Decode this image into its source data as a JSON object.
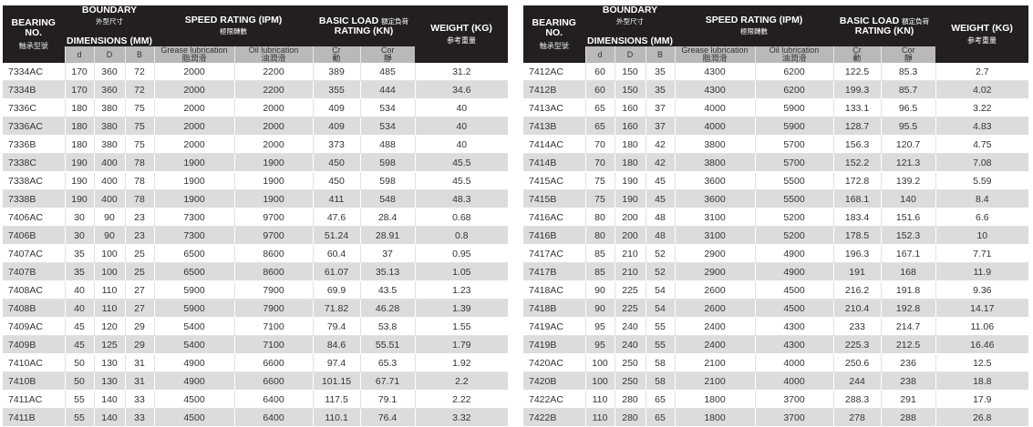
{
  "header": {
    "bearing_no": "BEARING NO.",
    "bearing_no_zh": "軸承型號",
    "boundary": "BOUNDARY",
    "boundary_zh": "外型尺寸",
    "dimensions": "DIMENSIONS (MM)",
    "speed_rating": "SPEED RATING (IPM)",
    "speed_rating_zh": "極限轉數",
    "basic_load": "BASIC LOAD",
    "basic_load_zh": "額定負荷",
    "load_rating": "RATING (KN)",
    "weight": "WEIGHT (KG)",
    "weight_zh": "参考重量",
    "col_d": "d",
    "col_D": "D",
    "col_B": "B",
    "grease": "Grease lubrication",
    "grease_zh": "脂潤滑",
    "oil": "Oil lubrication",
    "oil_zh": "油潤滑",
    "cr": "Cr",
    "cr_zh": "動",
    "cor": "Cor",
    "cor_zh": "靜"
  },
  "left_rows": [
    [
      "7334AC",
      "170",
      "360",
      "72",
      "2000",
      "2200",
      "389",
      "485",
      "31.2"
    ],
    [
      "7334B",
      "170",
      "360",
      "72",
      "2000",
      "2200",
      "355",
      "444",
      "34.6"
    ],
    [
      "7336C",
      "180",
      "380",
      "75",
      "2000",
      "2000",
      "409",
      "534",
      "40"
    ],
    [
      "7336AC",
      "180",
      "380",
      "75",
      "2000",
      "2000",
      "409",
      "534",
      "40"
    ],
    [
      "7336B",
      "180",
      "380",
      "75",
      "2000",
      "2000",
      "373",
      "488",
      "40"
    ],
    [
      "7338C",
      "190",
      "400",
      "78",
      "1900",
      "1900",
      "450",
      "598",
      "45.5"
    ],
    [
      "7338AC",
      "190",
      "400",
      "78",
      "1900",
      "1900",
      "450",
      "598",
      "45.5"
    ],
    [
      "7338B",
      "190",
      "400",
      "78",
      "1900",
      "1900",
      "411",
      "548",
      "48.3"
    ],
    [
      "7406AC",
      "30",
      "90",
      "23",
      "7300",
      "9700",
      "47.6",
      "28.4",
      "0.68"
    ],
    [
      "7406B",
      "30",
      "90",
      "23",
      "7300",
      "9700",
      "51.24",
      "28.91",
      "0.8"
    ],
    [
      "7407AC",
      "35",
      "100",
      "25",
      "6500",
      "8600",
      "60.4",
      "37",
      "0.95"
    ],
    [
      "7407B",
      "35",
      "100",
      "25",
      "6500",
      "8600",
      "61.07",
      "35.13",
      "1.05"
    ],
    [
      "7408AC",
      "40",
      "110",
      "27",
      "5900",
      "7900",
      "69.9",
      "43.5",
      "1.23"
    ],
    [
      "7408B",
      "40",
      "110",
      "27",
      "5900",
      "7900",
      "71.82",
      "46.28",
      "1.39"
    ],
    [
      "7409AC",
      "45",
      "120",
      "29",
      "5400",
      "7100",
      "79.4",
      "53.8",
      "1.55"
    ],
    [
      "7409B",
      "45",
      "125",
      "29",
      "5400",
      "7100",
      "84.6",
      "55.51",
      "1.79"
    ],
    [
      "7410AC",
      "50",
      "130",
      "31",
      "4900",
      "6600",
      "97.4",
      "65.3",
      "1.92"
    ],
    [
      "7410B",
      "50",
      "130",
      "31",
      "4900",
      "6600",
      "101.15",
      "67.71",
      "2.2"
    ],
    [
      "7411AC",
      "55",
      "140",
      "33",
      "4500",
      "6400",
      "117.5",
      "79.1",
      "2.22"
    ],
    [
      "7411B",
      "55",
      "140",
      "33",
      "4500",
      "6400",
      "110.1",
      "76.4",
      "3.32"
    ]
  ],
  "right_rows": [
    [
      "7412AC",
      "60",
      "150",
      "35",
      "4300",
      "6200",
      "122.5",
      "85.3",
      "2.7"
    ],
    [
      "7412B",
      "60",
      "150",
      "35",
      "4300",
      "6200",
      "199.3",
      "85.7",
      "4.02"
    ],
    [
      "7413AC",
      "65",
      "160",
      "37",
      "4000",
      "5900",
      "133.1",
      "96.5",
      "3.22"
    ],
    [
      "7413B",
      "65",
      "160",
      "37",
      "4000",
      "5900",
      "128.7",
      "95.5",
      "4.83"
    ],
    [
      "7414AC",
      "70",
      "180",
      "42",
      "3800",
      "5700",
      "156.3",
      "120.7",
      "4.75"
    ],
    [
      "7414B",
      "70",
      "180",
      "42",
      "3800",
      "5700",
      "152.2",
      "121.3",
      "7.08"
    ],
    [
      "7415AC",
      "75",
      "190",
      "45",
      "3600",
      "5500",
      "172.8",
      "139.2",
      "5.59"
    ],
    [
      "7415B",
      "75",
      "190",
      "45",
      "3600",
      "5500",
      "168.1",
      "140",
      "8.4"
    ],
    [
      "7416AC",
      "80",
      "200",
      "48",
      "3100",
      "5200",
      "183.4",
      "151.6",
      "6.6"
    ],
    [
      "7416B",
      "80",
      "200",
      "48",
      "3100",
      "5200",
      "178.5",
      "152.3",
      "10"
    ],
    [
      "7417AC",
      "85",
      "210",
      "52",
      "2900",
      "4900",
      "196.3",
      "167.1",
      "7.71"
    ],
    [
      "7417B",
      "85",
      "210",
      "52",
      "2900",
      "4900",
      "191",
      "168",
      "11.9"
    ],
    [
      "7418AC",
      "90",
      "225",
      "54",
      "2600",
      "4500",
      "216.2",
      "191.8",
      "9.36"
    ],
    [
      "7418B",
      "90",
      "225",
      "54",
      "2600",
      "4500",
      "210.4",
      "192.8",
      "14.17"
    ],
    [
      "7419AC",
      "95",
      "240",
      "55",
      "2400",
      "4300",
      "233",
      "214.7",
      "11.06"
    ],
    [
      "7419B",
      "95",
      "240",
      "55",
      "2400",
      "4300",
      "225.3",
      "212.5",
      "16.46"
    ],
    [
      "7420AC",
      "100",
      "250",
      "58",
      "2100",
      "4000",
      "250.6",
      "236",
      "12.5"
    ],
    [
      "7420B",
      "100",
      "250",
      "58",
      "2100",
      "4000",
      "244",
      "238",
      "18.8"
    ],
    [
      "7422AC",
      "110",
      "280",
      "65",
      "1800",
      "3700",
      "288.3",
      "291",
      "17.9"
    ],
    [
      "7422B",
      "110",
      "280",
      "65",
      "1800",
      "3700",
      "278",
      "288",
      "26.8"
    ]
  ]
}
